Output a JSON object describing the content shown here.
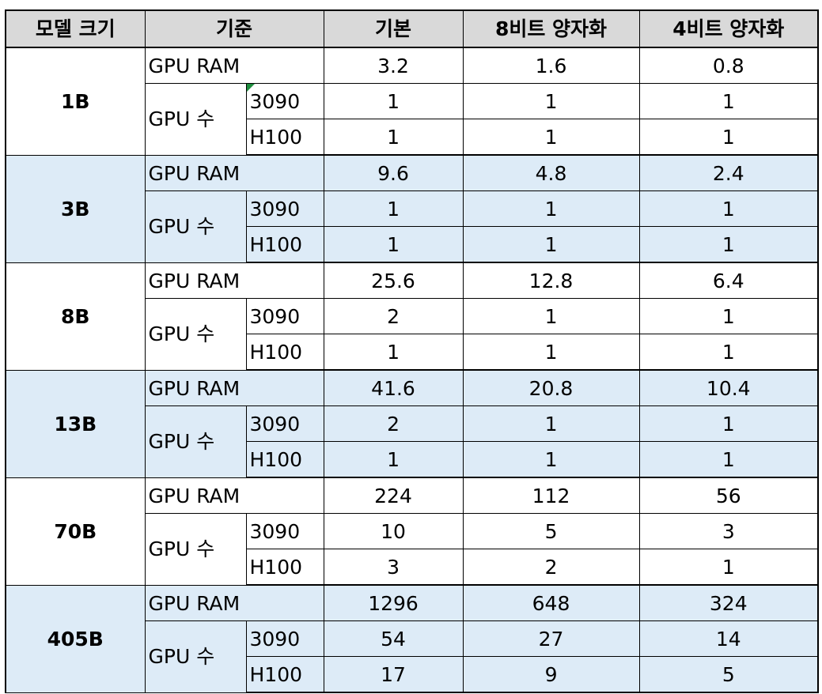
{
  "headers": {
    "model_size": "모델 크기",
    "criterion": "기준",
    "base": "기본",
    "quant8": "8비트 양자화",
    "quant4": "4비트 양자화"
  },
  "labels": {
    "gpu_ram": "GPU RAM",
    "gpu_count": "GPU 수",
    "gpu_3090": "3090",
    "gpu_h100": "H100"
  },
  "colors": {
    "header_bg": "#d9d9d9",
    "alt_row_bg": "#ddebf7",
    "comment_flag": "#1e8e3e"
  },
  "rows": [
    {
      "model": "1B",
      "ram": [
        "3.2",
        "1.6",
        "0.8"
      ],
      "g3090": [
        "1",
        "1",
        "1"
      ],
      "h100": [
        "1",
        "1",
        "1"
      ]
    },
    {
      "model": "3B",
      "ram": [
        "9.6",
        "4.8",
        "2.4"
      ],
      "g3090": [
        "1",
        "1",
        "1"
      ],
      "h100": [
        "1",
        "1",
        "1"
      ]
    },
    {
      "model": "8B",
      "ram": [
        "25.6",
        "12.8",
        "6.4"
      ],
      "g3090": [
        "2",
        "1",
        "1"
      ],
      "h100": [
        "1",
        "1",
        "1"
      ]
    },
    {
      "model": "13B",
      "ram": [
        "41.6",
        "20.8",
        "10.4"
      ],
      "g3090": [
        "2",
        "1",
        "1"
      ],
      "h100": [
        "1",
        "1",
        "1"
      ]
    },
    {
      "model": "70B",
      "ram": [
        "224",
        "112",
        "56"
      ],
      "g3090": [
        "10",
        "5",
        "3"
      ],
      "h100": [
        "3",
        "2",
        "1"
      ]
    },
    {
      "model": "405B",
      "ram": [
        "1296",
        "648",
        "324"
      ],
      "g3090": [
        "54",
        "27",
        "14"
      ],
      "h100": [
        "17",
        "9",
        "5"
      ]
    }
  ]
}
